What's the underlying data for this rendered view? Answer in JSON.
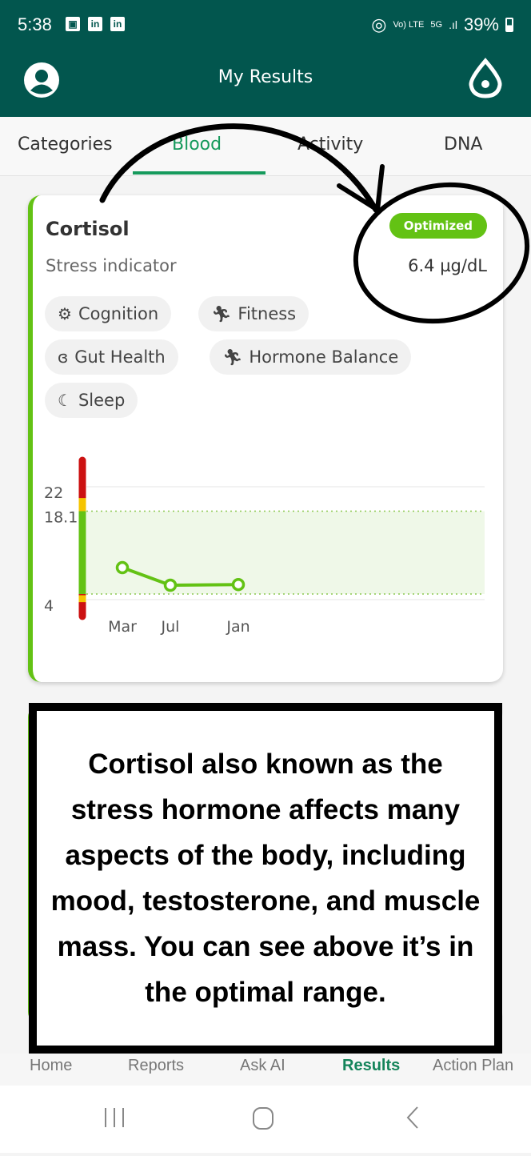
{
  "status_bar": {
    "time": "5:38",
    "battery": "39%",
    "network": "5G",
    "volte": "Vo) LTE"
  },
  "app_bar": {
    "title": "My Results",
    "left_icon": "account-icon",
    "right_icon": "drop-icon"
  },
  "tabs": [
    {
      "label": "Categories"
    },
    {
      "label": "Blood",
      "active": true
    },
    {
      "label": "Activity"
    },
    {
      "label": "DNA"
    }
  ],
  "card": {
    "title": "Cortisol",
    "subtitle": "Stress indicator",
    "badge": "Optimized",
    "value": "6.4 µg/dL",
    "chips": [
      {
        "label": "Cognition",
        "icon": "gears-icon"
      },
      {
        "label": "Fitness",
        "icon": "running-icon"
      },
      {
        "label": "Gut Health",
        "icon": "stomach-icon"
      },
      {
        "label": "Hormone Balance",
        "icon": "running-icon"
      },
      {
        "label": "Sleep",
        "icon": "moon-icon"
      }
    ]
  },
  "chart_data": {
    "type": "line",
    "categories": [
      "Mar",
      "Jul",
      "Jan"
    ],
    "values": [
      9.1,
      6.3,
      6.4
    ],
    "yticks": [
      "22",
      "18.1",
      "4"
    ],
    "ylim": [
      4,
      22
    ],
    "optimal_range": [
      4.9,
      18.1
    ],
    "colors": {
      "line": "#63c214",
      "optimal_fill": "#eff8e8",
      "red": "#cc1111",
      "yellow": "#f5c400",
      "green": "#63c214"
    },
    "grid": true
  },
  "overlay_text": "Cortisol also known as the stress hormone affects many aspects of the body, including mood, testosterone, and muscle mass. You can see above it’s in the optimal range.",
  "bottom_nav": [
    {
      "label": "Home"
    },
    {
      "label": "Reports"
    },
    {
      "label": "Ask AI"
    },
    {
      "label": "Results",
      "active": true
    },
    {
      "label": "Action Plan"
    }
  ],
  "colors": {
    "brand": "#02564e",
    "accent": "#169a5c",
    "optimized": "#63c214"
  }
}
